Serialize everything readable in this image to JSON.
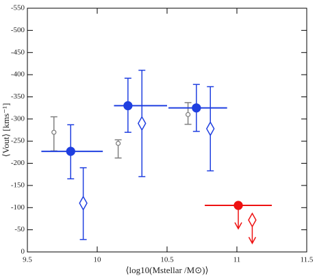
{
  "chart_data": {
    "type": "scatter",
    "xlabel": "⟨log10(Mstellar /M⊙)⟩",
    "ylabel": "⟨Vout⟩ [kms⁻¹]",
    "xlim": [
      9.5,
      11.5
    ],
    "xticks": [
      9.5,
      10,
      10.5,
      11,
      11.5
    ],
    "ylim": [
      0,
      -550
    ],
    "yticks": [
      0,
      -50,
      -100,
      -150,
      -200,
      -250,
      -300,
      -350,
      -400,
      -450,
      -500,
      -550
    ],
    "series": [
      {
        "color": "#808080",
        "marker": "circle",
        "size": 3,
        "filled": false,
        "x": [
          9.69,
          10.15,
          10.65
        ],
        "values": [
          -270,
          -245,
          -310
        ],
        "yerr_ends": [
          [
            -228,
            -305
          ],
          [
            -212,
            -253
          ],
          [
            -288,
            -337
          ]
        ]
      },
      {
        "color": "#1f3fe0",
        "marker": "circle",
        "size": 6,
        "filled": true,
        "x": [
          9.81,
          10.22,
          10.71
        ],
        "values": [
          -227,
          -330,
          -325
        ],
        "yerr_ends": [
          [
            -165,
            -287
          ],
          [
            -270,
            -392
          ],
          [
            -272,
            -378
          ]
        ],
        "xerr_ends": [
          [
            9.6,
            10.04
          ],
          [
            10.12,
            10.5
          ],
          [
            10.51,
            10.93
          ]
        ]
      },
      {
        "color": "#1f3fe0",
        "marker": "diamond",
        "size": 6,
        "filled": false,
        "x": [
          9.9,
          10.32,
          10.81
        ],
        "values": [
          -110,
          -290,
          -278
        ],
        "yerr_ends": [
          [
            -28,
            -190
          ],
          [
            -170,
            -410
          ],
          [
            -183,
            -373
          ]
        ]
      },
      {
        "color": "#ee1111",
        "marker": "circle",
        "size": 6,
        "filled": true,
        "upper_limit": true,
        "x": [
          11.01
        ],
        "values": [
          -105
        ],
        "xerr_ends": [
          [
            10.77,
            11.25
          ]
        ]
      },
      {
        "color": "#ee1111",
        "marker": "diamond",
        "size": 6,
        "filled": false,
        "upper_limit": true,
        "x": [
          11.11
        ],
        "values": [
          -72
        ]
      }
    ]
  }
}
